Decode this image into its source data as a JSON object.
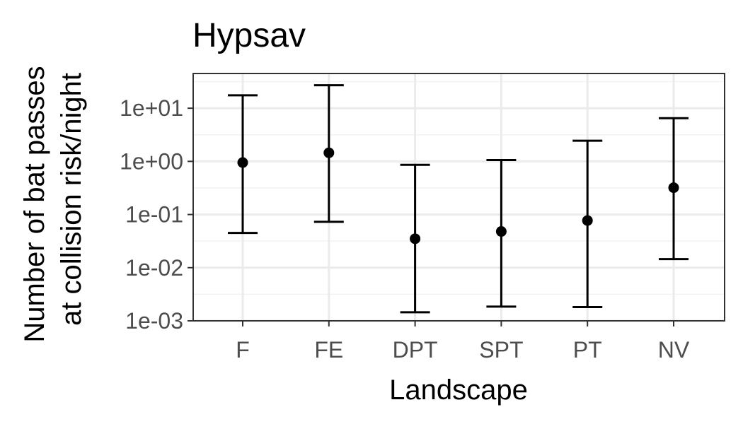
{
  "chart_data": {
    "type": "scatter",
    "title": "Hypsav",
    "xlabel": "Landscape",
    "ylabel_lines": [
      "Number of bat passes",
      "at collision risk/night"
    ],
    "y_scale": "log10",
    "ylim": [
      0.001,
      45
    ],
    "y_ticks": [
      0.001,
      0.01,
      0.1,
      1,
      10
    ],
    "y_tick_labels": [
      "1e-03",
      "1e-02",
      "1e-01",
      "1e+00",
      "1e+01"
    ],
    "categories": [
      "F",
      "FE",
      "DPT",
      "SPT",
      "PT",
      "NV"
    ],
    "series": [
      {
        "values": [
          0.95,
          1.45,
          0.035,
          0.048,
          0.077,
          0.32
        ],
        "lower": [
          0.045,
          0.073,
          0.00145,
          0.00185,
          0.00182,
          0.0145
        ],
        "upper": [
          17.5,
          27.0,
          0.86,
          1.06,
          2.45,
          6.5
        ]
      }
    ],
    "grid": true,
    "legend": "none",
    "colors": {
      "point": "#000000",
      "errorbar": "#000000",
      "grid_major": "#ebebeb",
      "grid_minor": "#f2f2f2",
      "border": "#333333",
      "tick_text": "#4d4d4d"
    }
  }
}
